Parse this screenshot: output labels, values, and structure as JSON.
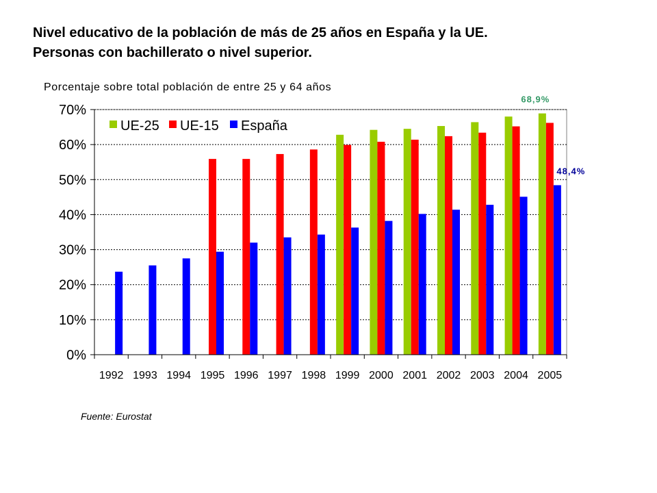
{
  "title_line1": "Nivel educativo de la población de más de 25 años en España y la UE.",
  "title_line2": "Personas con bachillerato o nivel superior.",
  "source": "Fuente: Eurostat",
  "chart_data": {
    "type": "bar",
    "subtitle": "Porcentaje sobre total población de entre 25 y 64 años",
    "categories": [
      "1992",
      "1993",
      "1994",
      "1995",
      "1996",
      "1997",
      "1998",
      "1999",
      "2000",
      "2001",
      "2002",
      "2003",
      "2004",
      "2005"
    ],
    "series": [
      {
        "name": "UE-25",
        "color": "#99cc00",
        "values": [
          null,
          null,
          null,
          null,
          null,
          null,
          null,
          62.8,
          64.2,
          64.5,
          65.3,
          66.4,
          68.0,
          68.9
        ]
      },
      {
        "name": "UE-15",
        "color": "#ff0000",
        "values": [
          null,
          null,
          null,
          55.9,
          55.9,
          57.3,
          58.6,
          59.9,
          60.8,
          61.4,
          62.4,
          63.4,
          65.2,
          66.2
        ]
      },
      {
        "name": "España",
        "color": "#0000ff",
        "values": [
          23.7,
          25.5,
          27.5,
          29.4,
          32.0,
          33.5,
          34.3,
          36.3,
          38.2,
          40.2,
          41.4,
          42.8,
          45.1,
          48.4
        ]
      }
    ],
    "ylim": [
      0,
      70
    ],
    "yticks": [
      "0%",
      "10%",
      "20%",
      "30%",
      "40%",
      "50%",
      "60%",
      "70%"
    ],
    "grid": true,
    "legend": "top-left",
    "annotations": [
      {
        "text": "68,9%",
        "series": "UE-25",
        "category": "2005",
        "color": "#339966"
      },
      {
        "text": "48,4%",
        "series": "España",
        "category": "2005",
        "color": "#000099"
      }
    ]
  }
}
